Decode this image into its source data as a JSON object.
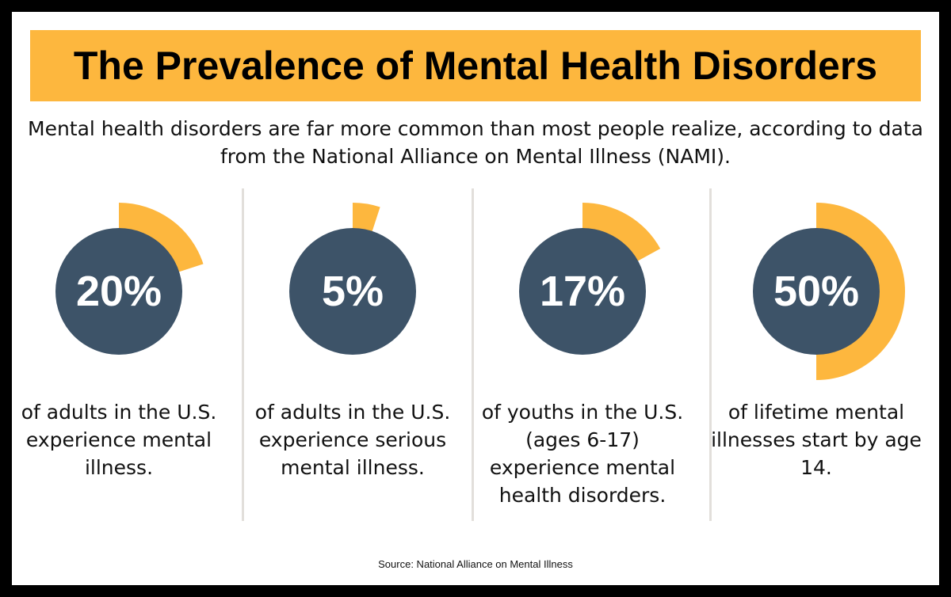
{
  "title": "The Prevalence of Mental Health Disorders",
  "subtitle": "Mental health disorders are far more common than most people realize, according to data from the National Alliance on Mental Illness (NAMI).",
  "source": "Source: National Alliance on Mental Illness",
  "colors": {
    "accent": "#FDB73E",
    "circle": "#3D5368",
    "divider": "#e2dfdb"
  },
  "chart_data": {
    "type": "pie",
    "categories": [
      "of adults in the U.S. experience mental illness.",
      "of adults in the U.S. experience serious mental illness.",
      "of youths in the U.S. (ages 6-17) experience mental health disorders.",
      "of lifetime mental illnesses start by age 14."
    ],
    "values": [
      20,
      5,
      17,
      50
    ],
    "labels": [
      "20%",
      "5%",
      "17%",
      "50%"
    ]
  }
}
